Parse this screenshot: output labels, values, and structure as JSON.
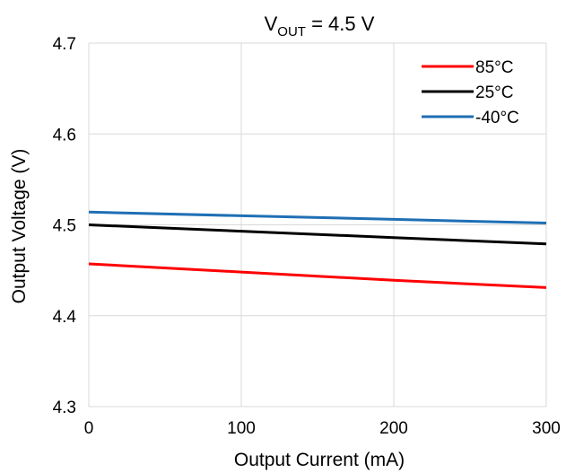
{
  "chart_data": {
    "type": "line",
    "title": "V",
    "title_subscript": "OUT",
    "title_suffix": " = 4.5 V",
    "xlabel": "Output Current (mA)",
    "ylabel": "Output Voltage (V)",
    "xlim": [
      0,
      300
    ],
    "ylim": [
      4.3,
      4.7
    ],
    "xticks": [
      0,
      100,
      200,
      300
    ],
    "yticks": [
      4.3,
      4.4,
      4.5,
      4.6,
      4.7
    ],
    "xtick_labels": [
      "0",
      "100",
      "200",
      "300"
    ],
    "ytick_labels": [
      "4.3",
      "4.4",
      "4.5",
      "4.6",
      "4.7"
    ],
    "grid": true,
    "legend_position": "top-right",
    "series": [
      {
        "name": "85°C",
        "color": "#ff0000",
        "x": [
          0,
          100,
          200,
          300
        ],
        "y": [
          4.457,
          4.448,
          4.439,
          4.431
        ]
      },
      {
        "name": "25°C",
        "color": "#000000",
        "x": [
          0,
          100,
          200,
          300
        ],
        "y": [
          4.5,
          4.493,
          4.486,
          4.479
        ]
      },
      {
        "name": "-40°C",
        "color": "#1f6fb4",
        "x": [
          0,
          100,
          200,
          300
        ],
        "y": [
          4.514,
          4.51,
          4.506,
          4.502
        ]
      }
    ]
  }
}
